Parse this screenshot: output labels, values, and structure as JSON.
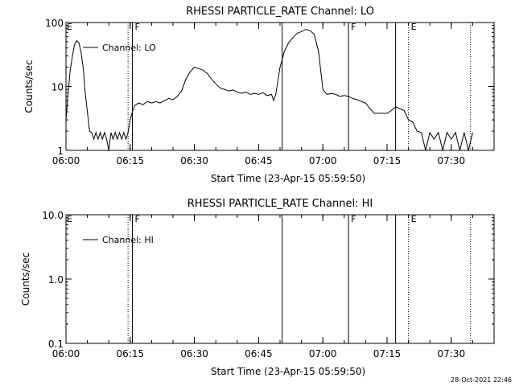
{
  "footer_timestamp": "28-Oct-2021 22:46",
  "chart_data": [
    {
      "type": "line",
      "title": "RHESSI PARTICLE_RATE Channel: LO",
      "xlabel": "Start Time (23-Apr-15 05:59:50)",
      "ylabel": "Counts/sec",
      "y_scale": "log",
      "ylim": [
        1,
        100
      ],
      "xlim": [
        "06:00",
        "07:40"
      ],
      "x_ticks": [
        "06:00",
        "06:15",
        "06:30",
        "06:45",
        "07:00",
        "07:15",
        "07:30"
      ],
      "y_ticks": [
        "1",
        "10",
        "100"
      ],
      "grid": false,
      "legend": {
        "position": "top-left",
        "entries": [
          "Channel: LO"
        ]
      },
      "markers": [
        {
          "time": "06:14.5",
          "style": "dotted",
          "label": ""
        },
        {
          "time": "06:15.5",
          "style": "solid",
          "label": "F"
        },
        {
          "time": "06:50.5",
          "style": "solid",
          "label": ""
        },
        {
          "time": "07:06",
          "style": "solid",
          "label": "F"
        },
        {
          "time": "07:17",
          "style": "solid",
          "label": ""
        },
        {
          "time": "07:20",
          "style": "dotted",
          "label": "E"
        },
        {
          "time": "07:34.5",
          "style": "dotted",
          "label": ""
        }
      ],
      "top_labels": [
        {
          "time": "06:00",
          "label": "E"
        }
      ],
      "series": [
        {
          "name": "Channel: LO",
          "points": [
            [
              "06:00",
              3
            ],
            [
              "06:00.5",
              8
            ],
            [
              "06:01",
              18
            ],
            [
              "06:01.5",
              30
            ],
            [
              "06:02",
              45
            ],
            [
              "06:02.5",
              52
            ],
            [
              "06:03",
              48
            ],
            [
              "06:03.5",
              35
            ],
            [
              "06:04",
              20
            ],
            [
              "06:04.5",
              8
            ],
            [
              "06:05",
              4
            ],
            [
              "06:05.5",
              2
            ],
            [
              "06:06",
              1.9
            ],
            [
              "06:06.5",
              1.5
            ],
            [
              "06:07",
              1.9
            ],
            [
              "06:07.5",
              1.5
            ],
            [
              "06:08",
              1.9
            ],
            [
              "06:08.5",
              1.5
            ],
            [
              "06:09",
              1.9
            ],
            [
              "06:09.5",
              1.5
            ],
            [
              "06:10",
              1.0
            ],
            [
              "06:10.5",
              1.9
            ],
            [
              "06:11",
              1.5
            ],
            [
              "06:11.5",
              1.9
            ],
            [
              "06:12",
              1.5
            ],
            [
              "06:12.5",
              1.9
            ],
            [
              "06:13",
              1.5
            ],
            [
              "06:13.5",
              1.9
            ],
            [
              "06:14",
              1.5
            ],
            [
              "06:14.5",
              1.9
            ],
            [
              "06:15",
              3.0
            ],
            [
              "06:15.5",
              4.0
            ],
            [
              "06:16",
              5.0
            ],
            [
              "06:17",
              5.5
            ],
            [
              "06:18",
              5.2
            ],
            [
              "06:19",
              5.8
            ],
            [
              "06:20",
              5.5
            ],
            [
              "06:21",
              5.8
            ],
            [
              "06:22",
              5.5
            ],
            [
              "06:23",
              6.0
            ],
            [
              "06:24",
              6.5
            ],
            [
              "06:25",
              6.2
            ],
            [
              "06:26",
              7.0
            ],
            [
              "06:27",
              8.5
            ],
            [
              "06:28",
              13
            ],
            [
              "06:29",
              17
            ],
            [
              "06:30",
              20
            ],
            [
              "06:31",
              19
            ],
            [
              "06:32",
              18
            ],
            [
              "06:33",
              16
            ],
            [
              "06:34",
              13
            ],
            [
              "06:35",
              11
            ],
            [
              "06:36",
              9.5
            ],
            [
              "06:37",
              9
            ],
            [
              "06:38",
              8.5
            ],
            [
              "06:39",
              8.8
            ],
            [
              "06:40",
              8.2
            ],
            [
              "06:41",
              7.8
            ],
            [
              "06:42",
              8.2
            ],
            [
              "06:43",
              7.5
            ],
            [
              "06:44",
              7.8
            ],
            [
              "06:45",
              7.5
            ],
            [
              "06:46",
              8.0
            ],
            [
              "06:47",
              7.2
            ],
            [
              "06:48",
              7.5
            ],
            [
              "06:48.5",
              6.0
            ],
            [
              "06:49",
              7.5
            ],
            [
              "06:50",
              20
            ],
            [
              "06:51",
              35
            ],
            [
              "06:52",
              48
            ],
            [
              "06:53",
              58
            ],
            [
              "06:54",
              68
            ],
            [
              "06:55",
              72
            ],
            [
              "06:56",
              78
            ],
            [
              "06:57",
              75
            ],
            [
              "06:58",
              65
            ],
            [
              "06:59",
              35
            ],
            [
              "07:00",
              9
            ],
            [
              "07:01",
              7.5
            ],
            [
              "07:02",
              7.8
            ],
            [
              "07:03",
              7.5
            ],
            [
              "07:04",
              7.0
            ],
            [
              "07:05",
              7.2
            ],
            [
              "07:06",
              7.0
            ],
            [
              "07:07",
              6.5
            ],
            [
              "07:08",
              6.2
            ],
            [
              "07:09",
              5.8
            ],
            [
              "07:10",
              5.5
            ],
            [
              "07:11",
              4.5
            ],
            [
              "07:12",
              3.8
            ],
            [
              "07:13",
              3.8
            ],
            [
              "07:14",
              3.8
            ],
            [
              "07:15",
              3.8
            ],
            [
              "07:16",
              4.2
            ],
            [
              "07:17",
              4.8
            ],
            [
              "07:18",
              4.5
            ],
            [
              "07:19",
              4.2
            ],
            [
              "07:20",
              3.0
            ],
            [
              "07:21",
              2.8
            ],
            [
              "07:22",
              2.0
            ],
            [
              "07:23",
              1.9
            ],
            [
              "07:24",
              1.0
            ],
            [
              "07:25",
              1.9
            ],
            [
              "07:26",
              1.5
            ],
            [
              "07:27",
              1.9
            ],
            [
              "07:28",
              1.0
            ],
            [
              "07:29",
              1.9
            ],
            [
              "07:30",
              1.5
            ],
            [
              "07:31",
              1.9
            ],
            [
              "07:32",
              1.0
            ],
            [
              "07:33",
              1.9
            ],
            [
              "07:34",
              1.0
            ],
            [
              "07:35",
              1.9
            ]
          ]
        }
      ]
    },
    {
      "type": "line",
      "title": "RHESSI PARTICLE_RATE Channel: HI",
      "xlabel": "Start Time (23-Apr-15 05:59:50)",
      "ylabel": "Counts/sec",
      "y_scale": "log",
      "ylim": [
        0.1,
        10
      ],
      "xlim": [
        "06:00",
        "07:40"
      ],
      "x_ticks": [
        "06:00",
        "06:15",
        "06:30",
        "06:45",
        "07:00",
        "07:15",
        "07:30"
      ],
      "y_ticks": [
        "0.1",
        "1.0",
        "10.0"
      ],
      "grid": false,
      "legend": {
        "position": "top-left",
        "entries": [
          "Channel: HI"
        ]
      },
      "markers": [
        {
          "time": "06:14.5",
          "style": "dotted",
          "label": ""
        },
        {
          "time": "06:15.5",
          "style": "solid",
          "label": "F"
        },
        {
          "time": "06:50.5",
          "style": "solid",
          "label": ""
        },
        {
          "time": "07:06",
          "style": "solid",
          "label": "F"
        },
        {
          "time": "07:17",
          "style": "solid",
          "label": ""
        },
        {
          "time": "07:20",
          "style": "dotted",
          "label": "E"
        },
        {
          "time": "07:34.5",
          "style": "dotted",
          "label": ""
        }
      ],
      "top_labels": [
        {
          "time": "06:00",
          "label": "E"
        }
      ],
      "series": [
        {
          "name": "Channel: HI",
          "points": []
        }
      ]
    }
  ]
}
